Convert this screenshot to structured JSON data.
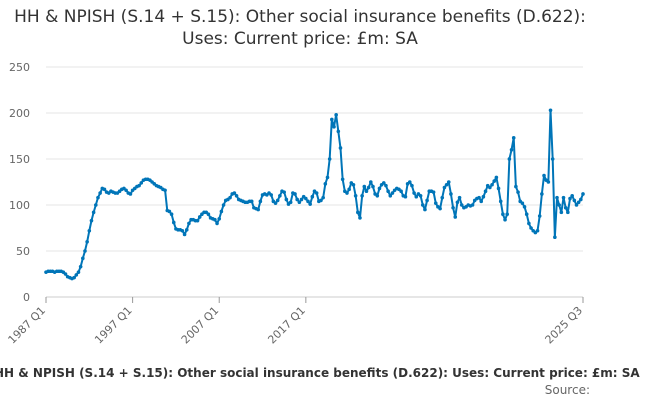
{
  "chart_data": {
    "type": "line",
    "title": "HH & NPISH (S.14 + S.15): Other social insurance benefits (D.622): Uses: Current price: £m: SA",
    "xlabel": "",
    "ylabel": "",
    "ylim": [
      0,
      250
    ],
    "yticks": [
      0,
      50,
      100,
      150,
      200,
      250
    ],
    "x_tick_labels": [
      "1987 Q1",
      "1997 Q1",
      "2007 Q1",
      "2017 Q1",
      "2025 Q3"
    ],
    "x_start": "1987 Q1",
    "x_end": "2025 Q3",
    "grid": true,
    "legend_position": "bottom",
    "color": "#0075b8",
    "series": [
      {
        "name": "HH & NPISH (S.14 + S.15): Other social insurance benefits (D.622): Uses: Current price: £m: SA",
        "values": [
          27,
          28,
          28,
          28,
          27,
          28,
          28,
          28,
          27,
          25,
          22,
          21,
          20,
          21,
          24,
          27,
          33,
          42,
          50,
          60,
          72,
          83,
          92,
          100,
          108,
          113,
          118,
          117,
          114,
          113,
          115,
          114,
          113,
          113,
          115,
          117,
          118,
          116,
          113,
          112,
          116,
          118,
          120,
          121,
          124,
          127,
          128,
          128,
          127,
          125,
          123,
          121,
          120,
          119,
          117,
          116,
          94,
          93,
          90,
          81,
          74,
          73,
          73,
          72,
          68,
          73,
          80,
          84,
          84,
          83,
          83,
          87,
          90,
          92,
          92,
          90,
          86,
          85,
          84,
          80,
          85,
          93,
          100,
          105,
          106,
          108,
          112,
          113,
          110,
          106,
          105,
          104,
          103,
          103,
          104,
          104,
          97,
          96,
          95,
          104,
          111,
          112,
          111,
          113,
          111,
          104,
          102,
          105,
          110,
          115,
          114,
          106,
          101,
          103,
          113,
          112,
          106,
          103,
          106,
          109,
          107,
          104,
          101,
          109,
          115,
          113,
          104,
          105,
          108,
          123,
          130,
          150,
          193,
          185,
          198,
          180,
          162,
          128,
          115,
          113,
          117,
          124,
          122,
          110,
          92,
          86,
          110,
          120,
          115,
          119,
          125,
          120,
          112,
          110,
          118,
          122,
          124,
          121,
          115,
          110,
          113,
          116,
          118,
          117,
          115,
          110,
          109,
          123,
          125,
          121,
          113,
          109,
          112,
          110,
          100,
          95,
          105,
          115,
          115,
          114,
          102,
          98,
          96,
          108,
          119,
          122,
          125,
          112,
          97,
          87,
          103,
          108,
          100,
          97,
          98,
          100,
          99,
          100,
          105,
          107,
          108,
          104,
          109,
          115,
          121,
          119,
          122,
          126,
          130,
          118,
          104,
          90,
          84,
          90,
          150,
          160,
          173,
          120,
          114,
          104,
          102,
          98,
          90,
          80,
          75,
          72,
          70,
          72,
          88,
          112,
          132,
          127,
          125,
          203,
          150,
          65,
          108,
          100,
          92,
          108,
          97,
          92,
          107,
          110,
          105,
          100,
          103,
          106,
          112
        ]
      }
    ],
    "legend_text": "HH & NPISH (S.14 + S.15): Other social insurance benefits (D.622): Uses: Current price: £m: SA",
    "source_label": "Source:"
  }
}
